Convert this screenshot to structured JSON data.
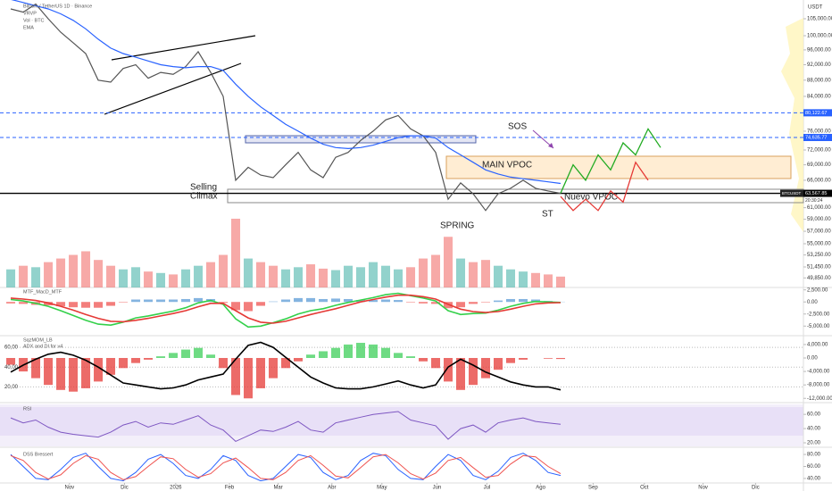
{
  "chart_data": [
    {
      "type": "line",
      "title": "Bitcoin / TetherUS 1D · Binance",
      "subtitles": [
        "VRVP",
        "Vol · BTC",
        "EMA"
      ],
      "currency": "USDT",
      "log": true,
      "grid": false,
      "ylim": [
        48500,
        110240
      ],
      "yticks": [
        {
          "value": 105000,
          "label": "105,000.00"
        },
        {
          "value": 100000,
          "label": "100,000.00"
        },
        {
          "value": 96000,
          "label": "96,000.00"
        },
        {
          "value": 92000,
          "label": "92,000.00"
        },
        {
          "value": 88000,
          "label": "88,000.00"
        },
        {
          "value": 84000,
          "label": "84,000.00"
        },
        {
          "value": 76000,
          "label": "76,000.00"
        },
        {
          "value": 72000,
          "label": "72,000.00"
        },
        {
          "value": 69000,
          "label": "69,000.00"
        },
        {
          "value": 66000,
          "label": "66,000.00"
        },
        {
          "value": 61000,
          "label": "61,000.00"
        },
        {
          "value": 59000,
          "label": "59,000.00"
        },
        {
          "value": 57000,
          "label": "57,000.00"
        },
        {
          "value": 55000,
          "label": "55,000.00"
        },
        {
          "value": 53250,
          "label": "53,250.00"
        },
        {
          "value": 51450,
          "label": "51,450.00"
        },
        {
          "value": 49850,
          "label": "49,850.00"
        }
      ],
      "xlim": [
        -0.86,
        63.43
      ],
      "xticks": [
        {
          "value": 4.7,
          "label": "Nov"
        },
        {
          "value": 9.1,
          "label": "Dic"
        },
        {
          "value": 13.2,
          "label": "2026"
        },
        {
          "value": 17.5,
          "label": "Feb"
        },
        {
          "value": 21.4,
          "label": "Mar"
        },
        {
          "value": 25.7,
          "label": "Abr"
        },
        {
          "value": 29.7,
          "label": "May"
        },
        {
          "value": 34.1,
          "label": "Jun"
        },
        {
          "value": 38.1,
          "label": "Jul"
        },
        {
          "value": 42.4,
          "label": "Ago"
        },
        {
          "value": 46.6,
          "label": "Sep"
        },
        {
          "value": 50.7,
          "label": "Oct"
        },
        {
          "value": 55.4,
          "label": "Nov"
        },
        {
          "value": 59.6,
          "label": "Dic"
        }
      ],
      "levels": [
        {
          "value": 80122.67,
          "label": "80,122.67",
          "color": "#2962ff",
          "style": "dashed"
        },
        {
          "value": 74635.77,
          "label": "74,635.77",
          "color": "#2962ff",
          "style": "dashed"
        },
        {
          "value": 63567.85,
          "label": "63,567.85",
          "color": "#000000",
          "style": "solid"
        }
      ],
      "symbol_tag": "BTCUSDT",
      "countdown": "20:30:24",
      "annotations": {
        "selling_climax": [
          "Selling",
          "Climax"
        ],
        "spring": "SPRING",
        "main_vpoc": "MAIN VPOC",
        "sos": "SOS",
        "st": "ST",
        "nuevo_vpoc": "Nuevo VPOC"
      },
      "series": [
        {
          "color": "#555555",
          "width": 1.2,
          "values": [
            108000,
            107000,
            109500,
            105000,
            101000,
            98000,
            95000,
            88000,
            87500,
            91000,
            92000,
            88500,
            90000,
            89500,
            91500,
            95500,
            90000,
            84000,
            66000,
            68500,
            67000,
            66500,
            69000,
            71500,
            68000,
            66500,
            70500,
            71500,
            74000,
            76000,
            78500,
            79500,
            76500,
            75000,
            71500,
            62500,
            65500,
            63500,
            60500,
            63500,
            64500,
            66000,
            64500,
            64000,
            63567.85
          ]
        },
        {
          "color": "#2962ff",
          "width": 1.2,
          "values": [
            111000,
            110000,
            109000,
            108000,
            106500,
            104500,
            102000,
            99000,
            96500,
            95000,
            94000,
            93000,
            92000,
            91500,
            91200,
            91500,
            91500,
            90500,
            87000,
            84000,
            81500,
            79500,
            77500,
            76000,
            74500,
            73200,
            72500,
            72300,
            72500,
            73000,
            73800,
            74600,
            75000,
            75000,
            74500,
            72500,
            71000,
            69500,
            68000,
            67200,
            66600,
            66300,
            66000,
            65700,
            65400
          ]
        },
        {
          "color": "#22ab22",
          "width": 1.3,
          "values": [
            null,
            null,
            null,
            null,
            null,
            null,
            null,
            null,
            null,
            null,
            null,
            null,
            null,
            null,
            null,
            null,
            null,
            null,
            null,
            null,
            null,
            null,
            null,
            null,
            null,
            null,
            null,
            null,
            null,
            null,
            null,
            null,
            null,
            null,
            null,
            null,
            null,
            null,
            null,
            null,
            null,
            null,
            null,
            null,
            63600,
            69000,
            66000,
            71000,
            68000,
            73500,
            71000,
            76500,
            72500
          ]
        },
        {
          "color": "#e53935",
          "width": 1.3,
          "values": [
            null,
            null,
            null,
            null,
            null,
            null,
            null,
            null,
            null,
            null,
            null,
            null,
            null,
            null,
            null,
            null,
            null,
            null,
            null,
            null,
            null,
            null,
            null,
            null,
            null,
            null,
            null,
            null,
            null,
            null,
            null,
            null,
            null,
            null,
            null,
            null,
            null,
            null,
            null,
            null,
            null,
            null,
            null,
            null,
            63000,
            60500,
            62500,
            60500,
            64000,
            62000,
            69500,
            66000,
            null
          ]
        }
      ]
    },
    {
      "type": "bar",
      "up_color": "#26a69a",
      "down_color": "#ef5350",
      "values": [
        25,
        30,
        28,
        35,
        40,
        45,
        50,
        38,
        30,
        25,
        28,
        22,
        20,
        18,
        25,
        30,
        35,
        45,
        95,
        40,
        35,
        30,
        25,
        28,
        32,
        26,
        24,
        30,
        28,
        35,
        30,
        25,
        28,
        40,
        45,
        70,
        40,
        35,
        38,
        30,
        25,
        22,
        20,
        18,
        15
      ]
    },
    {
      "type": "line",
      "title": "MTF_MacD_MTF",
      "ylim": [
        -6800,
        3000
      ],
      "yticks": [
        {
          "value": 2500,
          "label": "2,500.00"
        },
        {
          "value": 0,
          "label": "0.00"
        },
        {
          "value": -2500,
          "label": "-2,500.00"
        },
        {
          "value": -5000,
          "label": "-5,000.00"
        }
      ],
      "series": [
        {
          "style": "histogram",
          "color": "#5b9bd5",
          "negative_color": "#ef5350",
          "values": [
            -300,
            -400,
            -600,
            -700,
            -900,
            -1100,
            -1200,
            -1200,
            -800,
            -100,
            500,
            500,
            500,
            500,
            600,
            800,
            600,
            -200,
            -1700,
            -1900,
            -800,
            100,
            500,
            800,
            800,
            600,
            700,
            600,
            400,
            400,
            500,
            400,
            -100,
            -300,
            -400,
            -1300,
            -1100,
            -400,
            -100,
            300,
            600,
            600,
            500,
            200,
            50
          ]
        },
        {
          "color": "#33d04a",
          "width": 1.6,
          "values": [
            500,
            200,
            -300,
            -900,
            -1800,
            -2800,
            -3800,
            -4600,
            -4800,
            -4200,
            -3300,
            -2900,
            -2400,
            -1900,
            -1200,
            -200,
            300,
            -500,
            -3500,
            -5200,
            -5000,
            -4300,
            -3500,
            -2500,
            -1800,
            -1400,
            -700,
            -100,
            400,
            900,
            1500,
            1800,
            1300,
            800,
            200,
            -1800,
            -2600,
            -2400,
            -2300,
            -1700,
            -900,
            -300,
            100,
            0,
            -100
          ]
        },
        {
          "color": "#e53935",
          "width": 1.6,
          "values": [
            800,
            600,
            300,
            -200,
            -900,
            -1700,
            -2600,
            -3400,
            -4000,
            -4100,
            -3800,
            -3400,
            -2900,
            -2400,
            -1800,
            -1000,
            -300,
            -300,
            -1800,
            -3300,
            -4200,
            -4400,
            -4000,
            -3300,
            -2600,
            -2000,
            -1400,
            -700,
            0,
            500,
            1000,
            1400,
            1400,
            1100,
            600,
            -500,
            -1500,
            -2000,
            -2200,
            -2000,
            -1500,
            -900,
            -400,
            -200,
            -150
          ]
        }
      ]
    },
    {
      "type": "line",
      "title": "SqzMOM_LB",
      "subtitle": "ADX and DI for v4",
      "ylim": [
        -13000,
        6100
      ],
      "yticks": [
        {
          "value": 4000,
          "label": "4,000.00"
        },
        {
          "value": 0,
          "label": "0.00"
        },
        {
          "value": -4000,
          "label": "-4,000.00"
        },
        {
          "value": -8000,
          "label": "-8,000.00"
        },
        {
          "value": -12000,
          "label": "-12,000.00"
        }
      ],
      "y2lim": [
        5,
        70
      ],
      "y2ticks": [
        {
          "value": 60,
          "label": "60,00"
        },
        {
          "value": 40,
          "label": "40,00"
        },
        {
          "value": 20,
          "label": "20,00"
        }
      ],
      "series": [
        {
          "style": "histogram",
          "color": "#3ecf5a",
          "negative_color": "#e53935",
          "values": [
            -2000,
            -4000,
            -6000,
            -8000,
            -9500,
            -10000,
            -9000,
            -7000,
            -5000,
            -3000,
            -1500,
            -500,
            500,
            1500,
            2500,
            3000,
            1000,
            -3000,
            -11000,
            -12000,
            -9000,
            -6000,
            -3000,
            -1000,
            1000,
            2000,
            3000,
            4000,
            4500,
            4000,
            3000,
            1500,
            500,
            -1000,
            -3000,
            -7000,
            -9500,
            -8000,
            -6000,
            -3500,
            -1500,
            -500,
            0,
            -200,
            -300
          ]
        },
        {
          "axis": "y2",
          "color": "#000000",
          "width": 1.6,
          "values": [
            35,
            42,
            48,
            53,
            55,
            52,
            47,
            40,
            32,
            24,
            22,
            20,
            18,
            19,
            22,
            27,
            30,
            33,
            48,
            62,
            65,
            60,
            50,
            40,
            30,
            24,
            19,
            18,
            18,
            20,
            23,
            26,
            22,
            19,
            22,
            40,
            48,
            42,
            35,
            30,
            25,
            22,
            20,
            20,
            17
          ]
        }
      ]
    },
    {
      "type": "line",
      "title": "RSI",
      "ylim": [
        15,
        74
      ],
      "yticks": [
        {
          "value": 60,
          "label": "60.00"
        },
        {
          "value": 40,
          "label": "40.00"
        },
        {
          "value": 20,
          "label": "20.00"
        }
      ],
      "series": [
        {
          "color": "#7e57c2",
          "width": 1,
          "values": [
            55,
            48,
            52,
            42,
            35,
            32,
            30,
            28,
            35,
            45,
            50,
            42,
            48,
            46,
            52,
            58,
            45,
            38,
            22,
            30,
            38,
            36,
            42,
            50,
            38,
            35,
            48,
            52,
            56,
            60,
            62,
            64,
            52,
            48,
            44,
            25,
            40,
            45,
            35,
            48,
            52,
            55,
            50,
            48,
            46
          ]
        }
      ]
    },
    {
      "type": "line",
      "title": "DSS Bressert",
      "ylim": [
        31,
        89
      ],
      "yticks": [
        {
          "value": 80,
          "label": "80.00"
        },
        {
          "value": 60,
          "label": "60.00"
        },
        {
          "value": 40,
          "label": "40.00"
        }
      ],
      "series": [
        {
          "color": "#2962ff",
          "width": 1,
          "values": [
            80,
            60,
            40,
            38,
            55,
            75,
            82,
            60,
            40,
            36,
            50,
            72,
            80,
            65,
            45,
            40,
            55,
            78,
            70,
            45,
            36,
            40,
            60,
            80,
            75,
            50,
            38,
            45,
            70,
            82,
            78,
            55,
            40,
            38,
            60,
            80,
            70,
            45,
            38,
            52,
            75,
            82,
            70,
            50,
            45
          ]
        },
        {
          "color": "#ef5350",
          "width": 1,
          "values": [
            78,
            70,
            50,
            39,
            46,
            65,
            78,
            72,
            50,
            38,
            43,
            60,
            76,
            73,
            55,
            42,
            48,
            66,
            74,
            58,
            40,
            38,
            50,
            70,
            78,
            62,
            44,
            41,
            58,
            76,
            80,
            66,
            48,
            39,
            49,
            70,
            75,
            58,
            42,
            45,
            64,
            78,
            76,
            60,
            48
          ]
        }
      ]
    }
  ]
}
